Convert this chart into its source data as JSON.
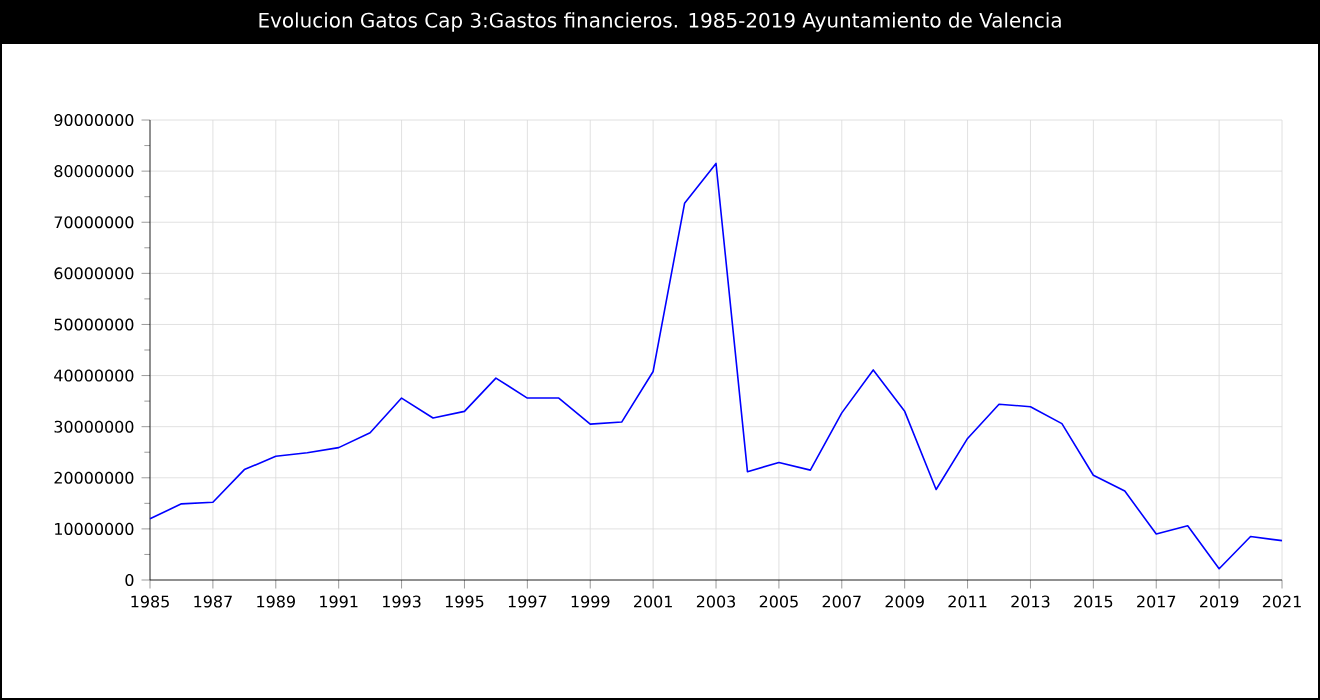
{
  "chart_data": {
    "type": "line",
    "title": "Evolucion Gatos Cap 3:Gastos financieros. 1985-2019 Ayuntamiento de Valencia",
    "x": [
      1985,
      1986,
      1987,
      1988,
      1989,
      1990,
      1991,
      1992,
      1993,
      1994,
      1995,
      1996,
      1997,
      1998,
      1999,
      2000,
      2001,
      2002,
      2003,
      2004,
      2005,
      2006,
      2007,
      2008,
      2009,
      2010,
      2011,
      2012,
      2013,
      2014,
      2015,
      2016,
      2017,
      2018,
      2019,
      2020,
      2021
    ],
    "series": [
      {
        "color": "#0000ff",
        "values": [
          12000000,
          14900000,
          15200000,
          21600000,
          24200000,
          24900000,
          25900000,
          28800000,
          35600000,
          31700000,
          33000000,
          39500000,
          35600000,
          35600000,
          30500000,
          30900000,
          40800000,
          73700000,
          81500000,
          21200000,
          23000000,
          21500000,
          32700000,
          41100000,
          33000000,
          17700000,
          27700000,
          34400000,
          33900000,
          30600000,
          20500000,
          17400000,
          9000000,
          10600000,
          2200000,
          8500000,
          7700000
        ]
      }
    ],
    "xlim": [
      1985,
      2021
    ],
    "xticks": [
      1985,
      1987,
      1989,
      1991,
      1993,
      1995,
      1997,
      1999,
      2001,
      2003,
      2005,
      2007,
      2009,
      2011,
      2013,
      2015,
      2017,
      2019,
      2021
    ],
    "ylim": [
      0,
      90000000
    ],
    "yticks": [
      0,
      10000000,
      20000000,
      30000000,
      40000000,
      50000000,
      60000000,
      70000000,
      80000000,
      90000000
    ],
    "grid": true
  }
}
